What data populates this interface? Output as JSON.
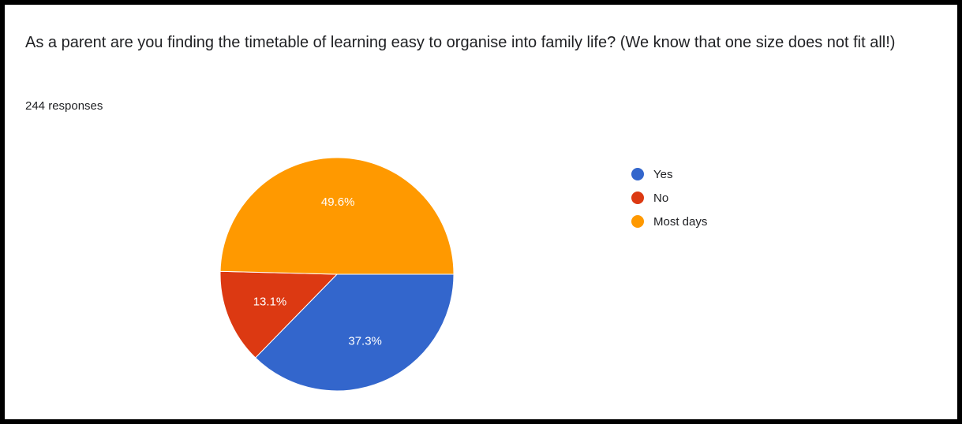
{
  "question": "As a parent are you finding the timetable of learning easy to organise into family life? (We know that one size does not fit all!)",
  "responses": "244 responses",
  "chart_data": {
    "type": "pie",
    "categories": [
      "Yes",
      "No",
      "Most days"
    ],
    "values": [
      37.3,
      13.1,
      49.6
    ],
    "labels": [
      "37.3%",
      "13.1%",
      "49.6%"
    ],
    "colors": [
      "#3366cc",
      "#dc3912",
      "#ff9900"
    ],
    "legend_position": "right"
  }
}
